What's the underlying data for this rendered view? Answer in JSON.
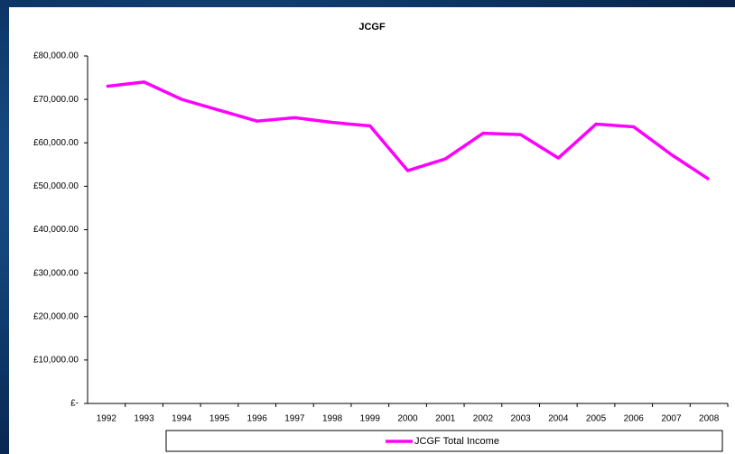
{
  "chart_data": {
    "type": "line",
    "title": "JCGF",
    "categories": [
      "1992",
      "1993",
      "1994",
      "1995",
      "1996",
      "1997",
      "1998",
      "1999",
      "2000",
      "2001",
      "2002",
      "2003",
      "2004",
      "2005",
      "2006",
      "2007",
      "2008"
    ],
    "series": [
      {
        "name": "JCGF Total Income",
        "color": "#ff00ff",
        "values": [
          73000,
          74000,
          70000,
          67500,
          65000,
          65800,
          64700,
          63900,
          53600,
          56300,
          62200,
          61900,
          56500,
          64300,
          63700,
          57300,
          51600
        ]
      }
    ],
    "ylim": [
      0,
      80000
    ],
    "yticks": [
      {
        "value": 0,
        "label": "£-"
      },
      {
        "value": 10000,
        "label": "£10,000.00"
      },
      {
        "value": 20000,
        "label": "£20,000.00"
      },
      {
        "value": 30000,
        "label": "£30,000.00"
      },
      {
        "value": 40000,
        "label": "£40,000.00"
      },
      {
        "value": 50000,
        "label": "£50,000.00"
      },
      {
        "value": 60000,
        "label": "£60,000.00"
      },
      {
        "value": 70000,
        "label": "£70,000.00"
      },
      {
        "value": 80000,
        "label": "£80,000.00"
      }
    ],
    "grid": false
  }
}
